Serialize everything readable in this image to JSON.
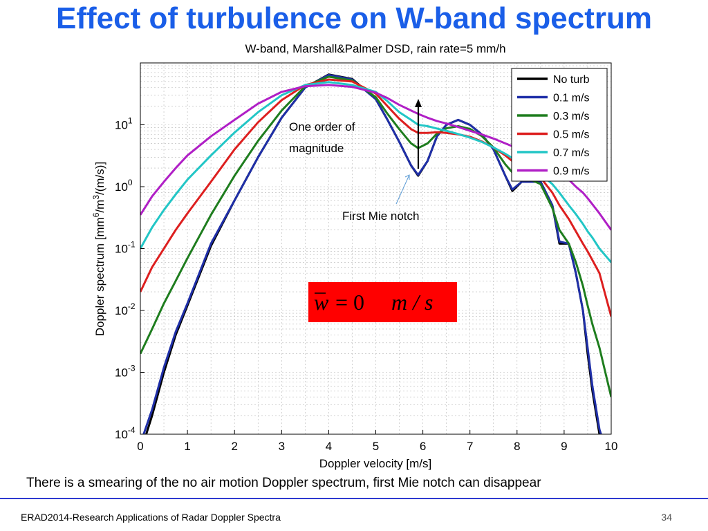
{
  "slide": {
    "title": "Effect of turbulence on W-band spectrum",
    "caption": "There is a smearing of the no air motion Doppler spectrum, first Mie notch can disappear",
    "footer_left": "ERAD2014-Research Applications of Radar Doppler Spectra",
    "page_number": "34"
  },
  "chart_data": {
    "type": "line",
    "title": "W-band, Marshall&Palmer DSD, rain rate=5 mm/h",
    "xlabel": "Doppler velocity [m/s]",
    "ylabel": "Doppler spectrum [mm^6/m^3/(m/s)]",
    "xlim": [
      0,
      10
    ],
    "ylim": [
      0.0001,
      100
    ],
    "y_scale": "log",
    "grid": true,
    "legend_position": "top-right",
    "x_ticks": [
      0,
      1,
      2,
      3,
      4,
      5,
      6,
      7,
      8,
      9,
      10
    ],
    "y_ticks": [
      {
        "value": 0.0001,
        "base": "10",
        "exp": "-4"
      },
      {
        "value": 0.001,
        "base": "10",
        "exp": "-3"
      },
      {
        "value": 0.01,
        "base": "10",
        "exp": "-2"
      },
      {
        "value": 0.1,
        "base": "10",
        "exp": "-1"
      },
      {
        "value": 1,
        "base": "10",
        "exp": "0"
      },
      {
        "value": 10,
        "base": "10",
        "exp": "1"
      }
    ],
    "x": [
      0,
      0.25,
      0.5,
      0.75,
      1,
      1.5,
      2,
      2.5,
      3,
      3.5,
      4,
      4.5,
      5,
      5.25,
      5.5,
      5.75,
      5.9,
      6.1,
      6.3,
      6.5,
      6.75,
      7,
      7.25,
      7.5,
      7.75,
      7.9,
      8.1,
      8.5,
      8.75,
      8.9,
      9.1,
      9.25,
      9.4,
      9.5,
      9.6,
      9.75,
      10
    ],
    "series": [
      {
        "name": "No turb",
        "color": "#000000",
        "values": [
          5e-05,
          0.0002,
          0.001,
          0.004,
          0.012,
          0.11,
          0.6,
          3,
          13,
          40,
          65,
          55,
          26,
          12,
          5.3,
          2.2,
          1.5,
          2.6,
          6.5,
          10,
          12,
          10,
          7,
          4,
          1.5,
          0.85,
          1.2,
          1.2,
          0.5,
          0.12,
          0.12,
          0.04,
          0.01,
          0.002,
          0.0005,
          0.0001,
          3e-05
        ]
      },
      {
        "name": "0.1 m/s",
        "color": "#1f2fa8",
        "values": [
          7e-05,
          0.00025,
          0.0012,
          0.0045,
          0.013,
          0.12,
          0.6,
          3,
          13,
          40,
          64,
          54,
          26,
          12,
          5.3,
          2.2,
          1.55,
          2.6,
          6.5,
          10,
          12,
          10,
          7,
          4,
          1.5,
          0.9,
          1.2,
          1.2,
          0.5,
          0.13,
          0.12,
          0.04,
          0.01,
          0.0025,
          0.0006,
          0.00012,
          3e-05
        ]
      },
      {
        "name": "0.3 m/s",
        "color": "#1e7d1e",
        "values": [
          0.002,
          0.005,
          0.013,
          0.03,
          0.07,
          0.35,
          1.5,
          5.5,
          17,
          42,
          60,
          52,
          28,
          15,
          8.5,
          5,
          4.2,
          5,
          7.2,
          8.8,
          9.5,
          8.6,
          6.6,
          4.3,
          2.3,
          1.7,
          1.5,
          1.1,
          0.45,
          0.2,
          0.12,
          0.06,
          0.025,
          0.012,
          0.006,
          0.0025,
          0.0004
        ]
      },
      {
        "name": "0.5 m/s",
        "color": "#dd1f1f",
        "values": [
          0.02,
          0.05,
          0.1,
          0.2,
          0.37,
          1.2,
          4,
          11,
          25,
          44,
          54,
          50,
          32,
          20,
          12.5,
          8.5,
          7.4,
          7.4,
          7.6,
          7.4,
          7,
          6.4,
          5.4,
          4.3,
          3.2,
          2.6,
          2.1,
          1.4,
          0.8,
          0.5,
          0.3,
          0.19,
          0.12,
          0.09,
          0.065,
          0.04,
          0.008
        ]
      },
      {
        "name": "0.7 m/s",
        "color": "#22c6c6",
        "values": [
          0.1,
          0.22,
          0.42,
          0.75,
          1.3,
          3.2,
          7.5,
          16,
          30,
          44,
          49,
          44,
          34,
          24,
          16,
          12,
          10,
          9.5,
          8.7,
          8,
          7.1,
          6.2,
          5.3,
          4.3,
          3.4,
          2.9,
          2.4,
          1.6,
          1.1,
          0.8,
          0.5,
          0.36,
          0.25,
          0.19,
          0.15,
          0.1,
          0.06
        ]
      },
      {
        "name": "0.9 m/s",
        "color": "#b01fc6",
        "values": [
          0.35,
          0.7,
          1.2,
          2,
          3.2,
          6.5,
          12,
          22,
          34,
          42,
          44,
          41,
          33,
          27,
          21,
          17,
          15,
          13,
          11.5,
          10.5,
          9.2,
          8,
          7,
          6,
          5,
          4.5,
          3.8,
          2.8,
          2.1,
          1.7,
          1.3,
          1,
          0.8,
          0.65,
          0.52,
          0.37,
          0.2
        ]
      }
    ],
    "annotations": {
      "order_label": "One order of magnitude",
      "notch_label": "First Mie notch",
      "formula": {
        "symbol": "w",
        "equals": "= 0",
        "unit": "m / s",
        "box_color": "#ff0000"
      }
    }
  }
}
